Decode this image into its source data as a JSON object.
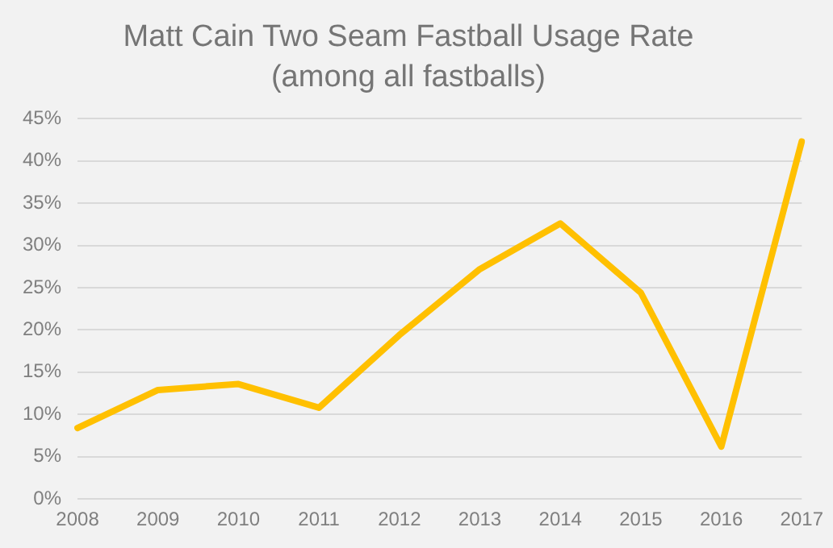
{
  "chart_data": {
    "type": "line",
    "title": "Matt Cain Two Seam Fastball Usage Rate",
    "subtitle": "(among all fastballs)",
    "categories": [
      "2008",
      "2009",
      "2010",
      "2011",
      "2012",
      "2013",
      "2014",
      "2015",
      "2016",
      "2017"
    ],
    "series": [
      {
        "color": "#ffc000",
        "values": [
          8.4,
          12.9,
          13.6,
          10.8,
          19.4,
          27.2,
          32.6,
          24.4,
          6.2,
          42.3
        ]
      }
    ],
    "ylim": [
      0,
      45
    ],
    "yticks": [
      {
        "value": 0,
        "label": "0%"
      },
      {
        "value": 5,
        "label": "5%"
      },
      {
        "value": 10,
        "label": "10%"
      },
      {
        "value": 15,
        "label": "15%"
      },
      {
        "value": 20,
        "label": "20%"
      },
      {
        "value": 25,
        "label": "25%"
      },
      {
        "value": 30,
        "label": "30%"
      },
      {
        "value": 35,
        "label": "35%"
      },
      {
        "value": 40,
        "label": "40%"
      },
      {
        "value": 45,
        "label": "45%"
      }
    ],
    "grid": "y",
    "legend": false,
    "marker": "none",
    "line_style": "solid"
  }
}
